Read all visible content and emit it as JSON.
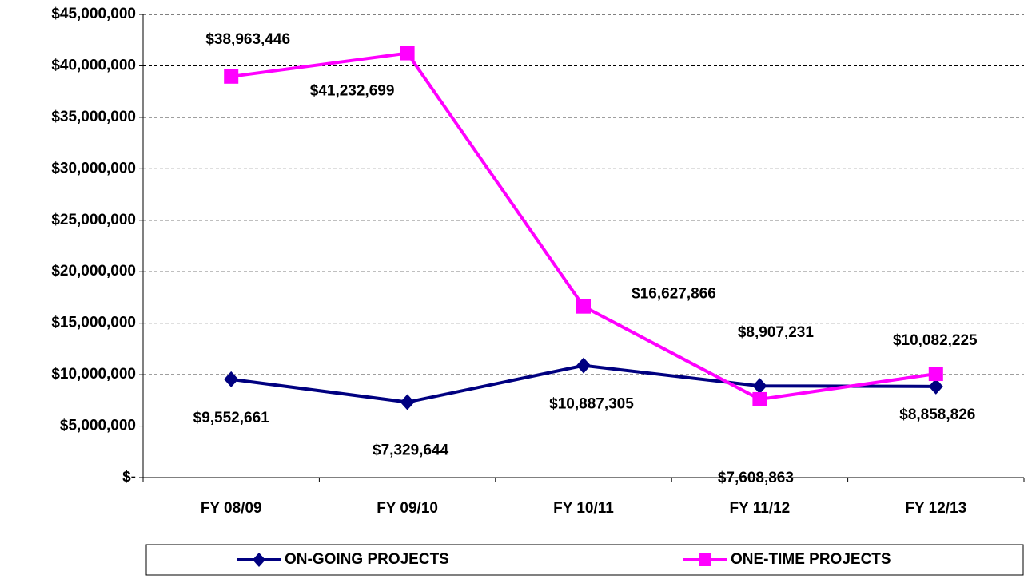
{
  "chart_data": {
    "type": "line",
    "categories": [
      "FY 08/09",
      "FY 09/10",
      "FY 10/11",
      "FY 11/12",
      "FY 12/13"
    ],
    "series": [
      {
        "name": "ON-GOING PROJECTS",
        "color": "#000080",
        "marker": "diamond",
        "values": [
          9552661,
          7329644,
          10887305,
          8907231,
          8858826
        ],
        "value_labels": [
          "$9,552,661",
          "$7,329,644",
          "$10,887,305",
          "$8,907,231",
          "$8,858,826"
        ]
      },
      {
        "name": "ONE-TIME PROJECTS",
        "color": "#ff00ff",
        "marker": "square",
        "values": [
          38963446,
          41232699,
          16627866,
          7608863,
          10082225
        ],
        "value_labels": [
          "$38,963,446",
          "$41,232,699",
          "$16,627,866",
          "$7,608,863",
          "$10,082,225"
        ]
      }
    ],
    "ylim": [
      0,
      45000000
    ],
    "yticks": [
      {
        "value": 0,
        "label": "$-"
      },
      {
        "value": 5000000,
        "label": "$5,000,000"
      },
      {
        "value": 10000000,
        "label": "$10,000,000"
      },
      {
        "value": 15000000,
        "label": "$15,000,000"
      },
      {
        "value": 20000000,
        "label": "$20,000,000"
      },
      {
        "value": 25000000,
        "label": "$25,000,000"
      },
      {
        "value": 30000000,
        "label": "$30,000,000"
      },
      {
        "value": 35000000,
        "label": "$35,000,000"
      },
      {
        "value": 40000000,
        "label": "$40,000,000"
      },
      {
        "value": 45000000,
        "label": "$45,000,000"
      }
    ],
    "grid": true,
    "legend": "bottom"
  }
}
